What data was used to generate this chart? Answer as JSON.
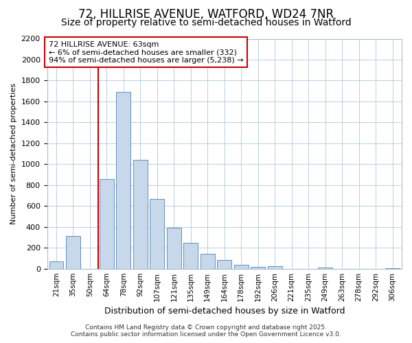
{
  "title1": "72, HILLRISE AVENUE, WATFORD, WD24 7NR",
  "title2": "Size of property relative to semi-detached houses in Watford",
  "xlabel": "Distribution of semi-detached houses by size in Watford",
  "ylabel": "Number of semi-detached properties",
  "categories": [
    "21sqm",
    "35sqm",
    "50sqm",
    "64sqm",
    "78sqm",
    "92sqm",
    "107sqm",
    "121sqm",
    "135sqm",
    "149sqm",
    "164sqm",
    "178sqm",
    "192sqm",
    "206sqm",
    "221sqm",
    "235sqm",
    "249sqm",
    "263sqm",
    "278sqm",
    "292sqm",
    "306sqm"
  ],
  "values": [
    70,
    310,
    0,
    860,
    1690,
    1040,
    670,
    395,
    245,
    140,
    80,
    35,
    20,
    25,
    0,
    0,
    10,
    0,
    0,
    0,
    5
  ],
  "bar_color": "#c8d8eb",
  "bar_edge_color": "#6090c0",
  "vline_color": "#cc0000",
  "annotation_title": "72 HILLRISE AVENUE: 63sqm",
  "annotation_line1": "← 6% of semi-detached houses are smaller (332)",
  "annotation_line2": "94% of semi-detached houses are larger (5,238) →",
  "annotation_box_color": "#ffffff",
  "annotation_box_edge": "#cc0000",
  "ylim": [
    0,
    2200
  ],
  "yticks": [
    0,
    200,
    400,
    600,
    800,
    1000,
    1200,
    1400,
    1600,
    1800,
    2000,
    2200
  ],
  "footnote1": "Contains HM Land Registry data © Crown copyright and database right 2025.",
  "footnote2": "Contains public sector information licensed under the Open Government Licence v3.0.",
  "bg_color": "#ffffff",
  "grid_color": "#b8cfe0",
  "title1_fontsize": 12,
  "title2_fontsize": 10
}
